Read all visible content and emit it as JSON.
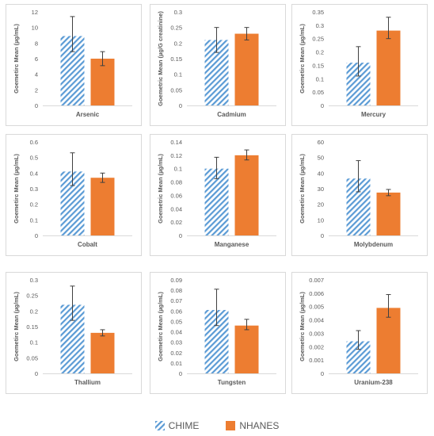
{
  "colors": {
    "chime_stripe": "#5B9BD5",
    "nhanes_fill": "#ED7D31",
    "panel_border": "#D9D9D9",
    "axis_text": "#595959",
    "error_bar": "#404040"
  },
  "legend": {
    "chime": "CHIME",
    "nhanes": "NHANES"
  },
  "chart_data": [
    {
      "type": "bar",
      "title": "Arsenic",
      "xlabel": "Arsenic",
      "ylabel": "Goemetirc Mean (µg/mL)",
      "ylim": [
        0,
        12
      ],
      "yticks": [
        "0",
        "2",
        "4",
        "6",
        "8",
        "10",
        "12"
      ],
      "yticks_values": [
        0,
        2,
        4,
        6,
        8,
        10,
        12
      ],
      "series": [
        {
          "name": "CHIME",
          "value": 8.9,
          "error_low": 6.9,
          "error_high": 11.4
        },
        {
          "name": "NHANES",
          "value": 6.0,
          "error_low": 5.1,
          "error_high": 6.9
        }
      ]
    },
    {
      "type": "bar",
      "title": "Cadmium",
      "xlabel": "Cadmium",
      "ylabel": "Goemetric Mean (µg/G creatinine)",
      "ylim": [
        0,
        0.3
      ],
      "yticks": [
        "0",
        "0.05",
        "0.1",
        "0.15",
        "0.2",
        "0.25",
        "0.3"
      ],
      "yticks_values": [
        0,
        0.05,
        0.1,
        0.15,
        0.2,
        0.25,
        0.3
      ],
      "series": [
        {
          "name": "CHIME",
          "value": 0.21,
          "error_low": 0.17,
          "error_high": 0.25
        },
        {
          "name": "NHANES",
          "value": 0.23,
          "error_low": 0.21,
          "error_high": 0.25
        }
      ]
    },
    {
      "type": "bar",
      "title": "Mercury",
      "xlabel": "Mercury",
      "ylabel": "Goemetirc Mean (µg/mL)",
      "ylim": [
        0,
        0.35
      ],
      "yticks": [
        "0",
        "0.05",
        "0.1",
        "0.15",
        "0.2",
        "0.25",
        "0.3",
        "0.35"
      ],
      "yticks_values": [
        0,
        0.05,
        0.1,
        0.15,
        0.2,
        0.25,
        0.3,
        0.35
      ],
      "series": [
        {
          "name": "CHIME",
          "value": 0.16,
          "error_low": 0.11,
          "error_high": 0.22
        },
        {
          "name": "NHANES",
          "value": 0.28,
          "error_low": 0.25,
          "error_high": 0.33
        }
      ]
    },
    {
      "type": "bar",
      "title": "Cobalt",
      "xlabel": "Cobalt",
      "ylabel": "Goemetirc Mean (µg/mL)",
      "ylim": [
        0,
        0.6
      ],
      "yticks": [
        "0",
        "0.1",
        "0.2",
        "0.3",
        "0.4",
        "0.5",
        "0.6"
      ],
      "yticks_values": [
        0,
        0.1,
        0.2,
        0.3,
        0.4,
        0.5,
        0.6
      ],
      "series": [
        {
          "name": "CHIME",
          "value": 0.41,
          "error_low": 0.32,
          "error_high": 0.53
        },
        {
          "name": "NHANES",
          "value": 0.37,
          "error_low": 0.34,
          "error_high": 0.4
        }
      ]
    },
    {
      "type": "bar",
      "title": "Manganese",
      "xlabel": "Manganese",
      "ylabel": "Goemetric Mean (µg/mL)",
      "ylim": [
        0,
        0.14
      ],
      "yticks": [
        "0",
        "0.02",
        "0.04",
        "0.06",
        "0.08",
        "0.1",
        "0.12",
        "0.14"
      ],
      "yticks_values": [
        0,
        0.02,
        0.04,
        0.06,
        0.08,
        0.1,
        0.12,
        0.14
      ],
      "series": [
        {
          "name": "CHIME",
          "value": 0.1,
          "error_low": 0.085,
          "error_high": 0.117
        },
        {
          "name": "NHANES",
          "value": 0.12,
          "error_low": 0.113,
          "error_high": 0.128
        }
      ]
    },
    {
      "type": "bar",
      "title": "Molybdenum",
      "xlabel": "Molybdenum",
      "ylabel": "Goemetirc Mean (µg/mL)",
      "ylim": [
        0,
        60
      ],
      "yticks": [
        "0",
        "10",
        "20",
        "30",
        "40",
        "50",
        "60"
      ],
      "yticks_values": [
        0,
        10,
        20,
        30,
        40,
        50,
        60
      ],
      "series": [
        {
          "name": "CHIME",
          "value": 36.5,
          "error_low": 28,
          "error_high": 48
        },
        {
          "name": "NHANES",
          "value": 27.5,
          "error_low": 25.5,
          "error_high": 29.5
        }
      ]
    },
    {
      "type": "bar",
      "title": "Thallium",
      "xlabel": "Thallium",
      "ylabel": "Goemetirc Mean (µg/mL)",
      "ylim": [
        0,
        0.3
      ],
      "yticks": [
        "0",
        "0.05",
        "0.1",
        "0.15",
        "0.2",
        "0.25",
        "0.3"
      ],
      "yticks_values": [
        0,
        0.05,
        0.1,
        0.15,
        0.2,
        0.25,
        0.3
      ],
      "series": [
        {
          "name": "CHIME",
          "value": 0.22,
          "error_low": 0.17,
          "error_high": 0.28
        },
        {
          "name": "NHANES",
          "value": 0.13,
          "error_low": 0.12,
          "error_high": 0.14
        }
      ]
    },
    {
      "type": "bar",
      "title": "Tungsten",
      "xlabel": "Tungsten",
      "ylabel": "Goemetirc Mean (µg/mL)",
      "ylim": [
        0,
        0.09
      ],
      "yticks": [
        "0",
        "0.01",
        "0.02",
        "0.03",
        "0.04",
        "0.05",
        "0.06",
        "0.07",
        "0.08",
        "0.09"
      ],
      "yticks_values": [
        0,
        0.01,
        0.02,
        0.03,
        0.04,
        0.05,
        0.06,
        0.07,
        0.08,
        0.09
      ],
      "series": [
        {
          "name": "CHIME",
          "value": 0.061,
          "error_low": 0.046,
          "error_high": 0.081
        },
        {
          "name": "NHANES",
          "value": 0.046,
          "error_low": 0.042,
          "error_high": 0.052
        }
      ]
    },
    {
      "type": "bar",
      "title": "Uranium-238",
      "xlabel": "Uranium-238",
      "ylabel": "Goemetirc Mean (µg/mL)",
      "ylim": [
        0,
        0.007
      ],
      "yticks": [
        "0",
        "0.001",
        "0.002",
        "0.003",
        "0.004",
        "0.005",
        "0.006",
        "0.007"
      ],
      "yticks_values": [
        0,
        0.001,
        0.002,
        0.003,
        0.004,
        0.005,
        0.006,
        0.007
      ],
      "series": [
        {
          "name": "CHIME",
          "value": 0.0024,
          "error_low": 0.0018,
          "error_high": 0.0032
        },
        {
          "name": "NHANES",
          "value": 0.0049,
          "error_low": 0.0042,
          "error_high": 0.0059
        }
      ]
    }
  ]
}
